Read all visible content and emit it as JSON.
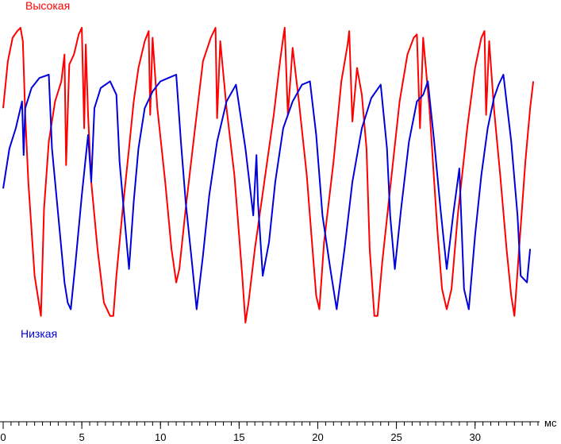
{
  "chart_data": {
    "type": "line",
    "x_unit": "мс",
    "xlim": [
      0,
      34
    ],
    "x_ticks": [
      0,
      5,
      10,
      15,
      20,
      25,
      30
    ],
    "ylim": [
      0,
      1
    ],
    "grid": false,
    "series": [
      {
        "name": "Высокая",
        "color": "#ff0000",
        "x": [
          0,
          0.3,
          0.6,
          0.9,
          1.1,
          1.25,
          1.4,
          1.6,
          2.0,
          2.4,
          2.6,
          2.9,
          3.3,
          3.7,
          3.9,
          4.0,
          4.2,
          4.5,
          4.8,
          5.0,
          5.15,
          5.25,
          5.4,
          5.6,
          6.0,
          6.4,
          6.8,
          7.0,
          7.2,
          7.6,
          8.0,
          8.3,
          8.6,
          9.0,
          9.25,
          9.35,
          9.5,
          9.8,
          10.3,
          10.7,
          11.0,
          11.2,
          11.6,
          12.2,
          12.7,
          13.2,
          13.5,
          13.6,
          13.8,
          14.2,
          14.7,
          15.2,
          15.4,
          15.6,
          16.0,
          16.6,
          17.2,
          17.6,
          17.8,
          17.9,
          18.1,
          18.4,
          18.8,
          19.3,
          19.6,
          19.9,
          20.1,
          20.4,
          21.0,
          21.5,
          21.9,
          22.0,
          22.2,
          22.5,
          22.8,
          23.1,
          23.3,
          23.6,
          23.8,
          24.1,
          24.6,
          25.2,
          25.7,
          26.1,
          26.3,
          26.5,
          26.7,
          27.1,
          27.4,
          27.6,
          27.9,
          28.2,
          28.5,
          28.9,
          29.5,
          30.0,
          30.4,
          30.6,
          30.7,
          30.9,
          31.2,
          31.6,
          32.0,
          32.3,
          32.5,
          32.8,
          33.2,
          33.5,
          33.7
        ],
        "y": [
          0.72,
          0.86,
          0.93,
          0.95,
          0.96,
          0.92,
          0.7,
          0.5,
          0.22,
          0.1,
          0.42,
          0.62,
          0.74,
          0.8,
          0.88,
          0.55,
          0.85,
          0.88,
          0.94,
          0.96,
          0.66,
          0.91,
          0.7,
          0.5,
          0.3,
          0.14,
          0.1,
          0.1,
          0.22,
          0.42,
          0.6,
          0.74,
          0.84,
          0.92,
          0.95,
          0.7,
          0.93,
          0.72,
          0.5,
          0.3,
          0.2,
          0.24,
          0.42,
          0.66,
          0.86,
          0.93,
          0.96,
          0.69,
          0.92,
          0.72,
          0.52,
          0.22,
          0.08,
          0.14,
          0.3,
          0.5,
          0.7,
          0.86,
          0.93,
          0.96,
          0.7,
          0.9,
          0.74,
          0.52,
          0.34,
          0.16,
          0.12,
          0.32,
          0.56,
          0.8,
          0.91,
          0.95,
          0.68,
          0.84,
          0.76,
          0.6,
          0.3,
          0.1,
          0.1,
          0.26,
          0.48,
          0.74,
          0.88,
          0.93,
          0.94,
          0.66,
          0.93,
          0.72,
          0.5,
          0.36,
          0.18,
          0.12,
          0.18,
          0.4,
          0.66,
          0.84,
          0.93,
          0.95,
          0.7,
          0.92,
          0.72,
          0.52,
          0.3,
          0.16,
          0.1,
          0.3,
          0.56,
          0.72,
          0.8
        ]
      },
      {
        "name": "Низкая",
        "color": "#0000dd",
        "x": [
          0,
          0.4,
          0.8,
          1.2,
          1.3,
          1.4,
          1.8,
          2.3,
          2.9,
          3.1,
          3.5,
          3.9,
          4.1,
          4.3,
          4.6,
          5.0,
          5.4,
          5.6,
          5.8,
          6.2,
          6.8,
          7.2,
          7.4,
          7.7,
          8.0,
          8.3,
          8.6,
          9.0,
          9.5,
          10.0,
          10.5,
          11.0,
          11.3,
          11.6,
          12.0,
          12.3,
          12.7,
          13.1,
          13.6,
          14.2,
          14.8,
          15.4,
          15.9,
          16.1,
          16.2,
          16.5,
          16.9,
          17.3,
          17.8,
          18.4,
          19.0,
          19.5,
          19.9,
          20.3,
          20.8,
          21.2,
          21.7,
          22.2,
          22.8,
          23.4,
          24.0,
          24.4,
          24.6,
          24.9,
          25.3,
          25.8,
          26.3,
          26.7,
          27.0,
          27.4,
          27.8,
          28.2,
          28.6,
          29.0,
          29.3,
          29.6,
          30.0,
          30.4,
          30.8,
          31.2,
          31.5,
          31.8,
          32.3,
          32.7,
          32.9,
          33.3,
          33.5
        ],
        "y": [
          0.48,
          0.6,
          0.66,
          0.74,
          0.58,
          0.72,
          0.78,
          0.81,
          0.82,
          0.6,
          0.4,
          0.2,
          0.14,
          0.12,
          0.26,
          0.46,
          0.64,
          0.5,
          0.72,
          0.78,
          0.8,
          0.76,
          0.56,
          0.4,
          0.24,
          0.44,
          0.6,
          0.72,
          0.77,
          0.8,
          0.81,
          0.82,
          0.62,
          0.44,
          0.26,
          0.12,
          0.28,
          0.46,
          0.62,
          0.74,
          0.79,
          0.6,
          0.4,
          0.58,
          0.44,
          0.22,
          0.32,
          0.5,
          0.66,
          0.74,
          0.79,
          0.8,
          0.64,
          0.4,
          0.24,
          0.12,
          0.3,
          0.5,
          0.66,
          0.75,
          0.79,
          0.6,
          0.4,
          0.24,
          0.42,
          0.62,
          0.74,
          0.76,
          0.8,
          0.62,
          0.42,
          0.24,
          0.4,
          0.54,
          0.18,
          0.12,
          0.34,
          0.52,
          0.66,
          0.75,
          0.79,
          0.82,
          0.62,
          0.4,
          0.22,
          0.2,
          0.3
        ]
      }
    ],
    "annotations": [
      {
        "text": "Высокая",
        "series": "Высокая"
      },
      {
        "text": "Низкая",
        "series": "Низкая"
      }
    ]
  }
}
